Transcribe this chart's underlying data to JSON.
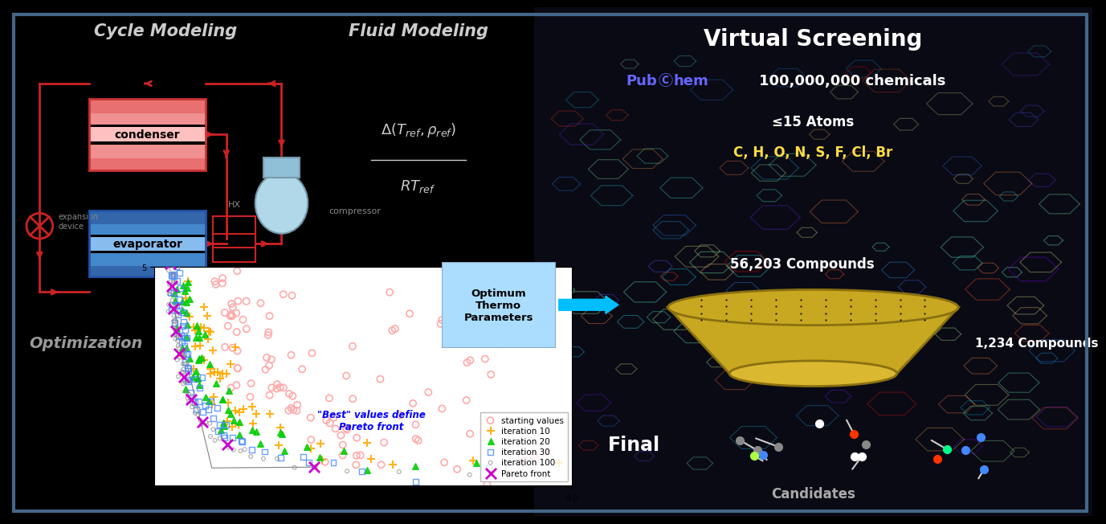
{
  "background_color": "#000000",
  "cycle_modeling_title": "Cycle Modeling",
  "fluid_modeling_title": "Fluid Modeling",
  "optimization_text": "Optimization",
  "condenser_color": "#e87070",
  "condenser_grad": "#ffc0c0",
  "evaporator_color": "#4488cc",
  "evaporator_grad": "#aaccee",
  "circuit_color": "#cc2222",
  "compressor_color": "#aaccdd",
  "arrow_blue": "#00bfff",
  "scatter_bg": "#ffffff",
  "pareto_annotation": "\"Best\" values define\nPareto front",
  "optimum_box_text": "Optimum\nThermo\nParameters",
  "optimum_box_bg": "#aaddff",
  "right_bg": "#111118",
  "vs_title": "Virtual Screening",
  "pubchem_text1": "Pub",
  "pubchem_circle": "Ⓒ",
  "pubchem_text2": "hem",
  "chemicals_text": "100,000,000 chemicals",
  "filter1_text": "≤15 Atoms",
  "filter2_text": "C, H, O, N, S, F, Cl, Br",
  "compounds1_text": "56,203 Compounds",
  "compounds2_text": "1,234 Compounds",
  "final_text": "Final",
  "candidates_text": "Candidates",
  "scatter_legend": [
    "starting values",
    "iteration 10",
    "iteration 20",
    "iteration 30",
    "iteration 100",
    "Pareto front"
  ],
  "scatter_colors": [
    "#ff9999",
    "#ffaa00",
    "#00cc00",
    "#4488ff",
    "#888888",
    "#cc00cc"
  ],
  "scatter_markers": [
    "o",
    "+",
    "^",
    "s",
    "o",
    "x"
  ]
}
